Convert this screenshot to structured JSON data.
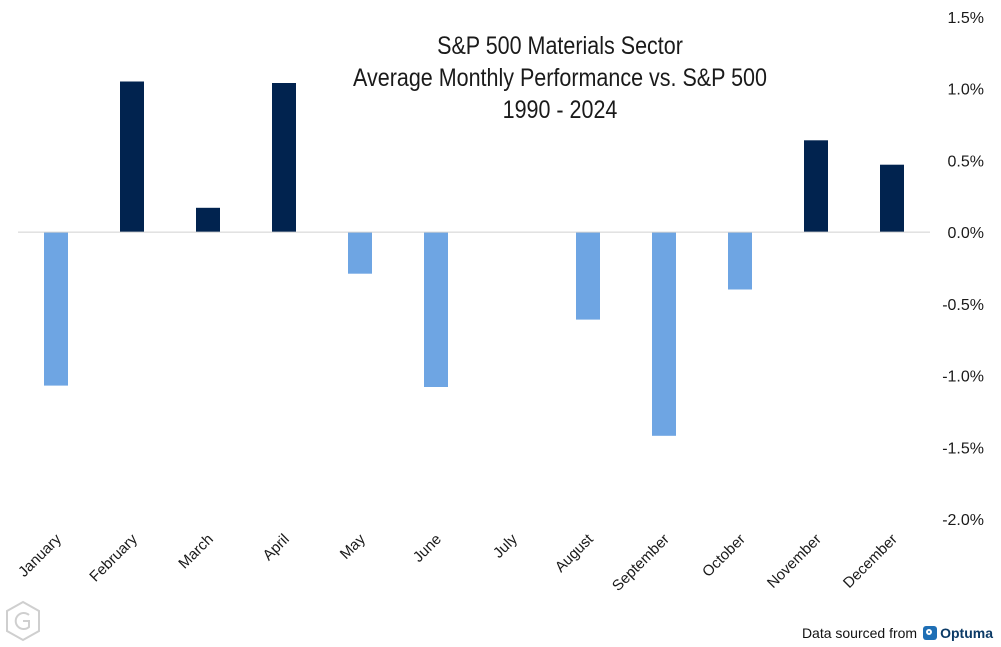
{
  "title": {
    "line1": "S&P 500 Materials Sector",
    "line2": "Average Monthly Performance vs. S&P 500",
    "line3": "1990 - 2024"
  },
  "source": {
    "label": "Data sourced from",
    "brand": "Optuma"
  },
  "colors": {
    "positive": "#01234f",
    "negative": "#6ea5e3",
    "zero_line": "#d0d0d0"
  },
  "chart_data": {
    "type": "bar",
    "categories": [
      "January",
      "February",
      "March",
      "April",
      "May",
      "June",
      "July",
      "August",
      "September",
      "October",
      "November",
      "December"
    ],
    "values": [
      -1.07,
      1.05,
      0.17,
      1.04,
      -0.29,
      -1.08,
      0.0,
      -0.61,
      -1.42,
      -0.4,
      0.64,
      0.47
    ],
    "ylim": [
      -2.0,
      1.5
    ],
    "yticks": [
      1.5,
      1.0,
      0.5,
      0.0,
      -0.5,
      -1.0,
      -1.5,
      -2.0
    ],
    "ytick_labels": [
      "1.5%",
      "1.0%",
      "0.5%",
      "0.0%",
      "-0.5%",
      "-1.0%",
      "-1.5%",
      "-2.0%"
    ],
    "y_axis_position": "right",
    "grid": false
  }
}
